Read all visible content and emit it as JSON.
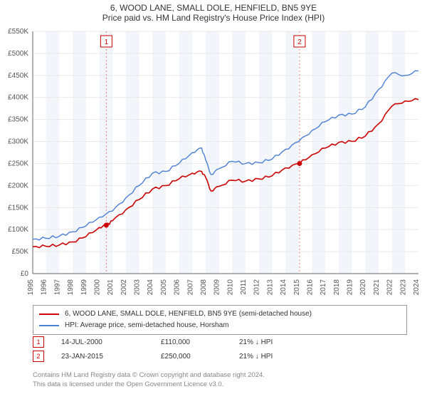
{
  "title_line1": "6, WOOD LANE, SMALL DOLE, HENFIELD, BN5 9YE",
  "title_line2": "Price paid vs. HM Land Registry's House Price Index (HPI)",
  "chart": {
    "type": "line",
    "background_color": "#ffffff",
    "grid_color": "#e8e8e8",
    "year_band_color": "#f2f6fa",
    "axis_color": "#666666",
    "tick_font_size": 10,
    "x_years": [
      1995,
      1996,
      1997,
      1998,
      1999,
      2000,
      2001,
      2002,
      2003,
      2004,
      2005,
      2006,
      2007,
      2008,
      2009,
      2010,
      2011,
      2012,
      2013,
      2014,
      2015,
      2016,
      2017,
      2018,
      2019,
      2020,
      2021,
      2022,
      2023,
      2024
    ],
    "y_min": 0,
    "y_max": 550000,
    "y_tick_step": 50000,
    "y_tick_labels": [
      "£0",
      "£50K",
      "£100K",
      "£150K",
      "£200K",
      "£250K",
      "£300K",
      "£350K",
      "£400K",
      "£450K",
      "£500K",
      "£550K"
    ],
    "series": [
      {
        "name": "address_series",
        "color": "#cc0000",
        "line_width": 1.6,
        "data": [
          [
            1995,
            61000
          ],
          [
            1996,
            62000
          ],
          [
            1997,
            65000
          ],
          [
            1998,
            72000
          ],
          [
            1999,
            84000
          ],
          [
            2000,
            105000
          ],
          [
            2000.53,
            110000
          ],
          [
            2001,
            120000
          ],
          [
            2002,
            145000
          ],
          [
            2003,
            168000
          ],
          [
            2004,
            192000
          ],
          [
            2005,
            200000
          ],
          [
            2006,
            215000
          ],
          [
            2007,
            228000
          ],
          [
            2007.7,
            232000
          ],
          [
            2008,
            218000
          ],
          [
            2008.4,
            188000
          ],
          [
            2009,
            198000
          ],
          [
            2010,
            212000
          ],
          [
            2011,
            210000
          ],
          [
            2012,
            215000
          ],
          [
            2013,
            222000
          ],
          [
            2014,
            240000
          ],
          [
            2015.06,
            250000
          ],
          [
            2016,
            270000
          ],
          [
            2017,
            285000
          ],
          [
            2018,
            298000
          ],
          [
            2019,
            300000
          ],
          [
            2020,
            312000
          ],
          [
            2021,
            340000
          ],
          [
            2022,
            380000
          ],
          [
            2023,
            392000
          ],
          [
            2024,
            395000
          ]
        ]
      },
      {
        "name": "hpi_series",
        "color": "#4a7fd6",
        "line_width": 1.4,
        "data": [
          [
            1995,
            78000
          ],
          [
            1996,
            80000
          ],
          [
            1997,
            85000
          ],
          [
            1998,
            95000
          ],
          [
            1999,
            108000
          ],
          [
            2000,
            128000
          ],
          [
            2001,
            142000
          ],
          [
            2002,
            172000
          ],
          [
            2003,
            200000
          ],
          [
            2004,
            228000
          ],
          [
            2005,
            232000
          ],
          [
            2006,
            250000
          ],
          [
            2007,
            275000
          ],
          [
            2007.7,
            285000
          ],
          [
            2008,
            258000
          ],
          [
            2008.4,
            225000
          ],
          [
            2009,
            238000
          ],
          [
            2010,
            255000
          ],
          [
            2011,
            250000
          ],
          [
            2012,
            252000
          ],
          [
            2013,
            260000
          ],
          [
            2014,
            282000
          ],
          [
            2015,
            300000
          ],
          [
            2016,
            325000
          ],
          [
            2017,
            345000
          ],
          [
            2018,
            360000
          ],
          [
            2019,
            362000
          ],
          [
            2020,
            378000
          ],
          [
            2021,
            418000
          ],
          [
            2022,
            455000
          ],
          [
            2023,
            450000
          ],
          [
            2024,
            460000
          ]
        ]
      }
    ],
    "markers": [
      {
        "id": "1",
        "year": 2000.53,
        "value": 110000,
        "label_y_offset": -36
      },
      {
        "id": "2",
        "year": 2015.06,
        "value": 250000,
        "label_y_offset": -36
      }
    ],
    "marker_line_color": "#e27f7f",
    "marker_box_border": "#cc0000",
    "marker_box_text": "#cc0000",
    "marker_dot_fill": "#cc0000"
  },
  "legend": {
    "items": [
      {
        "color": "#cc0000",
        "label": "6, WOOD LANE, SMALL DOLE, HENFIELD, BN5 9YE (semi-detached house)"
      },
      {
        "color": "#4a7fd6",
        "label": "HPI: Average price, semi-detached house, Horsham"
      }
    ]
  },
  "marker_table": [
    {
      "id": "1",
      "date": "14-JUL-2000",
      "price": "£110,000",
      "pct": "21% ↓ HPI"
    },
    {
      "id": "2",
      "date": "23-JAN-2015",
      "price": "£250,000",
      "pct": "21% ↓ HPI"
    }
  ],
  "footer_line1": "Contains HM Land Registry data © Crown copyright and database right 2024.",
  "footer_line2": "This data is licensed under the Open Government Licence v3.0."
}
